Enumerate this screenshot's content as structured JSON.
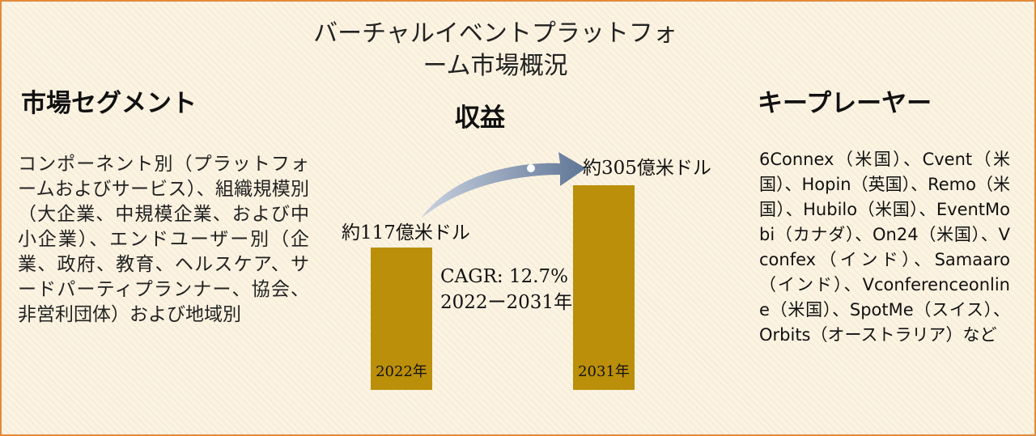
{
  "title": "バーチャルイベントプラットフォーム市場概況",
  "segments": {
    "heading": "市場セグメント",
    "text": "コンポーネント別（プラットフォームおよびサービス）、組織規模別（大企業、中規模企業、および中小企業）、エンドユーザー別（企業、政府、教育、ヘルスケア、サードパーティプランナー、協会、非営利団体）および地域別"
  },
  "revenue": {
    "heading": "収益",
    "bars": [
      {
        "label": "2022年",
        "value_label": "約117億米ドル"
      },
      {
        "label": "2031年",
        "value_label": "約305億米ドル"
      }
    ],
    "cagr": "CAGR: 12.7%\n2022ー2031年"
  },
  "players": {
    "heading": "キープレーヤー",
    "text": "6Connex（米国）、Cvent（米国）、Hopin（英国）、Remo（米国）、Hubilo（米国）、EventMobi（カナダ）、On24（米国）、Vconfex（インド）、Samaaro（インド）、Vconferenceonline（米国）、SpotMe（スイス）、Orbits（オーストラリア）など"
  }
}
